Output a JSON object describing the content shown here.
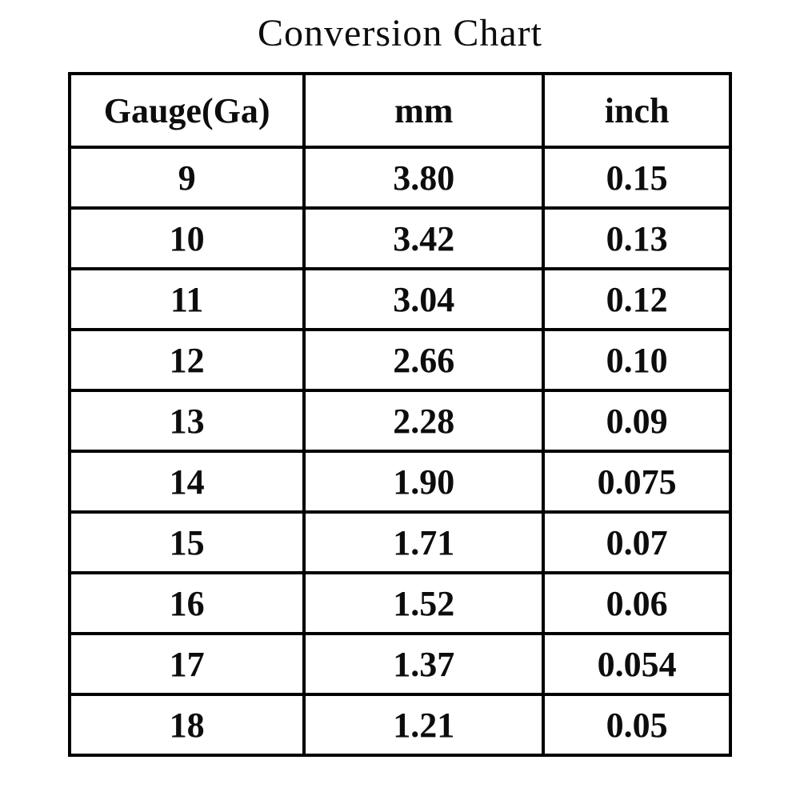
{
  "title": "Conversion Chart",
  "chart_data": {
    "type": "table",
    "title": "Conversion Chart",
    "columns": [
      "Gauge(Ga)",
      "mm",
      "inch"
    ],
    "rows": [
      [
        "9",
        "3.80",
        "0.15"
      ],
      [
        "10",
        "3.42",
        "0.13"
      ],
      [
        "11",
        "3.04",
        "0.12"
      ],
      [
        "12",
        "2.66",
        "0.10"
      ],
      [
        "13",
        "2.28",
        "0.09"
      ],
      [
        "14",
        "1.90",
        "0.075"
      ],
      [
        "15",
        "1.71",
        "0.07"
      ],
      [
        "16",
        "1.52",
        "0.06"
      ],
      [
        "17",
        "1.37",
        "0.054"
      ],
      [
        "18",
        "1.21",
        "0.05"
      ]
    ],
    "layout": {
      "header_row": true,
      "grid": "full-borders",
      "alignment": "center"
    }
  },
  "colors": {
    "border": "#000000",
    "text": "#0d0d0d",
    "background": "#ffffff"
  }
}
